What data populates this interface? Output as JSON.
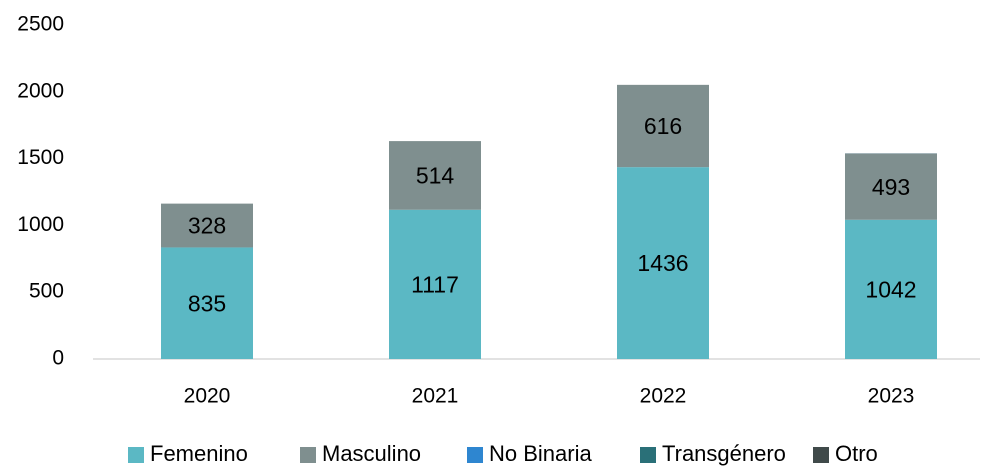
{
  "chart_data": {
    "type": "stacked_bar",
    "categories": [
      "2020",
      "2021",
      "2022",
      "2023"
    ],
    "series": [
      {
        "name": "Femenino",
        "color": "#5bb8c4",
        "values": [
          835,
          1117,
          1436,
          1042
        ],
        "labels": true
      },
      {
        "name": "Masculino",
        "color": "#7f8f8f",
        "values": [
          328,
          514,
          616,
          493
        ],
        "labels": true
      },
      {
        "name": "No Binaria",
        "color": "#2e86d0",
        "values": [
          0,
          0,
          0,
          1
        ],
        "labels": false
      },
      {
        "name": "Transgénero",
        "color": "#2a7078",
        "values": [
          0,
          0,
          0,
          1
        ],
        "labels": false
      },
      {
        "name": "Otro",
        "color": "#404a4a",
        "values": [
          0,
          0,
          0,
          2
        ],
        "labels": false
      }
    ],
    "ylim": [
      0,
      2500
    ],
    "yticks": [
      0,
      500,
      1000,
      1500,
      2000,
      2500
    ],
    "grid": false,
    "legend": "bottom"
  }
}
